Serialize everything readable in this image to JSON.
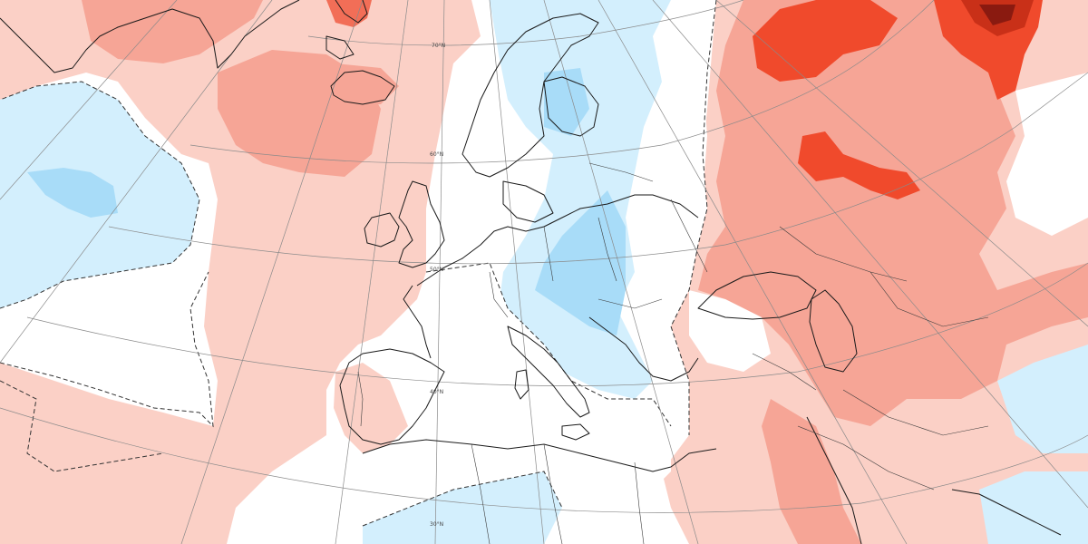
{
  "map": {
    "projection": "polar-stereographic-europe",
    "colors": {
      "warm_1": "#fbd0c6",
      "warm_2": "#f6a596",
      "warm_3": "#f26e57",
      "warm_4": "#f04a2c",
      "warm_5": "#c93018",
      "warm_6": "#8a1a10",
      "cool_1": "#d3effd",
      "cool_2": "#a8dcf8",
      "cool_3": "#7ac6f2",
      "neutral": "#ffffff",
      "coastline": "#1a1a1a",
      "graticule": "#8a8a8a"
    },
    "latitude_labels": [
      {
        "id": "lat-70",
        "text": "70°N"
      },
      {
        "id": "lat-60",
        "text": "60°N"
      },
      {
        "id": "lat-50",
        "text": "50°N"
      },
      {
        "id": "lat-40",
        "text": "40°N"
      },
      {
        "id": "lat-30",
        "text": "30°N"
      }
    ],
    "layers": [
      "anomaly-shading",
      "zero-contour-dashed",
      "coastlines",
      "country-borders",
      "graticule"
    ]
  }
}
